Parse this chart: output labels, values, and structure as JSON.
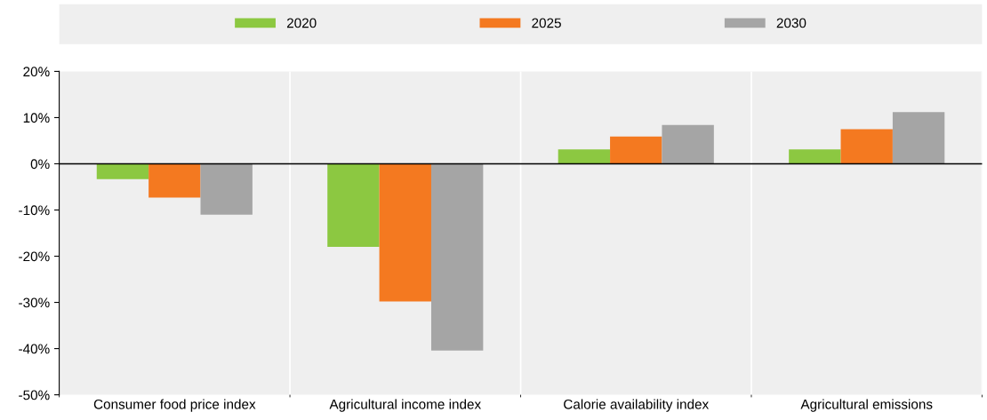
{
  "chart_data": {
    "type": "bar",
    "categories": [
      "Consumer food price index",
      "Agricultural income index",
      "Calorie availability index",
      "Agricultural emissions"
    ],
    "series": [
      {
        "name": "2020",
        "color": "#8cc841",
        "values": [
          -3.3,
          -18,
          3.1,
          3.1
        ]
      },
      {
        "name": "2025",
        "color": "#f47920",
        "values": [
          -7.3,
          -29.8,
          5.9,
          7.5
        ]
      },
      {
        "name": "2030",
        "color": "#a5a5a5",
        "values": [
          -11,
          -40.4,
          8.4,
          11.2
        ]
      }
    ],
    "ylim": [
      -50,
      20
    ],
    "yticks": [
      {
        "value": 20,
        "label": "20%"
      },
      {
        "value": 10,
        "label": "10%"
      },
      {
        "value": 0,
        "label": "0%"
      },
      {
        "value": -10,
        "label": "-10%"
      },
      {
        "value": -20,
        "label": "-20%"
      },
      {
        "value": -30,
        "label": "-30%"
      },
      {
        "value": -40,
        "label": "-40%"
      },
      {
        "value": -50,
        "label": "-50%"
      }
    ],
    "ref_lines": [
      {
        "axis": "y",
        "value": 0,
        "color": "#000000"
      }
    ],
    "grid": "x",
    "legend": "top"
  }
}
